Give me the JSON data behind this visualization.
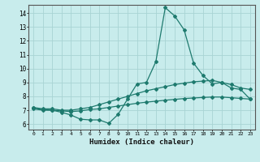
{
  "xlabel": "Humidex (Indice chaleur)",
  "ylabel": "",
  "bg_color": "#c8ecec",
  "grid_color": "#a8d4d4",
  "line_color": "#1e7a6e",
  "xlim": [
    -0.5,
    23.5
  ],
  "ylim": [
    5.6,
    14.6
  ],
  "yticks": [
    6,
    7,
    8,
    9,
    10,
    11,
    12,
    13,
    14
  ],
  "xticks": [
    0,
    1,
    2,
    3,
    4,
    5,
    6,
    7,
    8,
    9,
    10,
    11,
    12,
    13,
    14,
    15,
    16,
    17,
    18,
    19,
    20,
    21,
    22,
    23
  ],
  "curve1_x": [
    0,
    1,
    2,
    3,
    4,
    5,
    6,
    7,
    8,
    9,
    10,
    11,
    12,
    13,
    14,
    15,
    16,
    17,
    18,
    19,
    20,
    21,
    22,
    23
  ],
  "curve1_y": [
    7.1,
    7.0,
    7.0,
    6.85,
    6.65,
    6.35,
    6.3,
    6.3,
    6.05,
    6.7,
    7.8,
    8.9,
    9.0,
    10.5,
    14.4,
    13.8,
    12.8,
    10.4,
    9.5,
    8.9,
    9.0,
    8.6,
    8.5,
    7.8
  ],
  "curve2_x": [
    0,
    1,
    2,
    3,
    4,
    5,
    6,
    7,
    8,
    9,
    10,
    11,
    12,
    13,
    14,
    15,
    16,
    17,
    18,
    19,
    20,
    21,
    22,
    23
  ],
  "curve2_y": [
    7.2,
    7.1,
    7.1,
    7.0,
    7.0,
    7.1,
    7.2,
    7.4,
    7.6,
    7.8,
    8.0,
    8.2,
    8.4,
    8.55,
    8.7,
    8.85,
    8.95,
    9.05,
    9.1,
    9.15,
    9.0,
    8.85,
    8.6,
    8.5
  ],
  "curve3_x": [
    0,
    1,
    2,
    3,
    4,
    5,
    6,
    7,
    8,
    9,
    10,
    11,
    12,
    13,
    14,
    15,
    16,
    17,
    18,
    19,
    20,
    21,
    22,
    23
  ],
  "curve3_y": [
    7.15,
    7.05,
    7.0,
    6.95,
    6.9,
    6.95,
    7.05,
    7.1,
    7.2,
    7.3,
    7.4,
    7.5,
    7.58,
    7.65,
    7.72,
    7.78,
    7.84,
    7.88,
    7.92,
    7.95,
    7.95,
    7.9,
    7.85,
    7.8
  ]
}
